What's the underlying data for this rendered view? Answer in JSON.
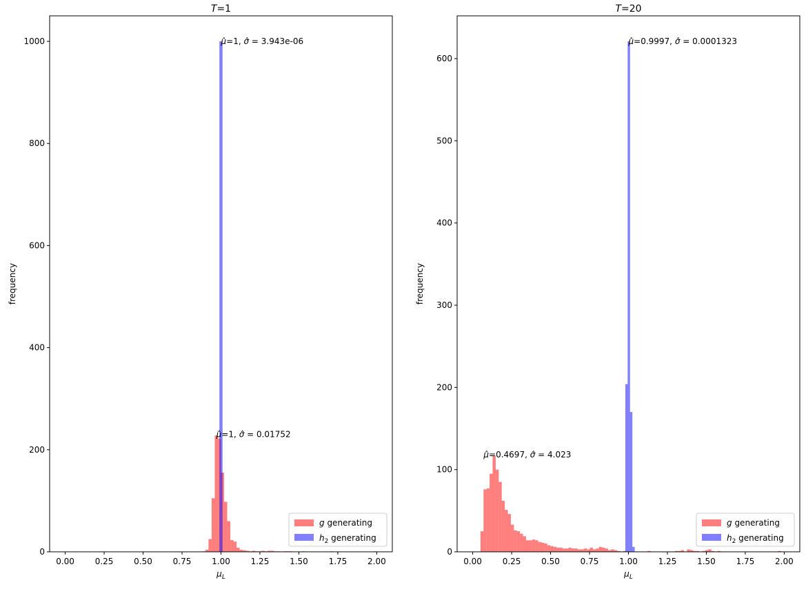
{
  "chart_data": [
    {
      "type": "bar",
      "title": "T=1",
      "title_italic_part": "T",
      "title_rest": "=1",
      "xlabel": "μL",
      "ylabel": "frequency",
      "xlim": [
        -0.1,
        2.1
      ],
      "ylim": [
        0,
        1050
      ],
      "x_ticks": [
        0.0,
        0.25,
        0.5,
        0.75,
        1.0,
        1.25,
        1.5,
        1.75,
        2.0
      ],
      "x_tick_labels": [
        "0.00",
        "0.25",
        "0.50",
        "0.75",
        "1.00",
        "1.25",
        "1.50",
        "1.75",
        "2.00"
      ],
      "y_ticks": [
        0,
        200,
        400,
        600,
        800,
        1000
      ],
      "y_tick_labels": [
        "0",
        "200",
        "400",
        "600",
        "800",
        "1000"
      ],
      "legend_position": "lower-right",
      "legend": [
        "g generating",
        "h2 generating"
      ],
      "series": [
        {
          "name": "g generating",
          "color": "#ff0000",
          "opacity": 0.5,
          "bin_start": 0.0,
          "bin_width": 0.02,
          "values": [
            0,
            0,
            0,
            0,
            0,
            0,
            0,
            0,
            0,
            0,
            0,
            0,
            0,
            0,
            0,
            0,
            0,
            0,
            0,
            0,
            0,
            0,
            0,
            0,
            0,
            0,
            0,
            0,
            0,
            0,
            0,
            0,
            0,
            0,
            0,
            0,
            0,
            0,
            0,
            0,
            0,
            0,
            0,
            0,
            1,
            4,
            25,
            105,
            228,
            222,
            155,
            98,
            60,
            23,
            20,
            8,
            4,
            3,
            2,
            1,
            2,
            1,
            1,
            2,
            1,
            2,
            2,
            1,
            1,
            0,
            1,
            1,
            1,
            0,
            0,
            0,
            1,
            0,
            0,
            0,
            0,
            0,
            0,
            0,
            0,
            1,
            0,
            0,
            0,
            0,
            0,
            0,
            0,
            0,
            0,
            0,
            0,
            0,
            0,
            1
          ]
        },
        {
          "name": "h2 generating",
          "color": "#0000ff",
          "opacity": 0.5,
          "bins": [
            [
              0.99,
              1.01,
              1000
            ]
          ]
        }
      ],
      "annotations": [
        {
          "text": "μ̂=1, σ̂ = 3.943e-06",
          "x": 1.0,
          "y": 1000
        },
        {
          "text": "μ̂=1, σ̂ = 0.01752",
          "x": 0.97,
          "y": 230
        }
      ]
    },
    {
      "type": "bar",
      "title": "T=20",
      "title_italic_part": "T",
      "title_rest": "=20",
      "xlabel": "μL",
      "ylabel": "frequency",
      "xlim": [
        -0.1,
        2.1
      ],
      "ylim": [
        0,
        652
      ],
      "x_ticks": [
        0.0,
        0.25,
        0.5,
        0.75,
        1.0,
        1.25,
        1.5,
        1.75,
        2.0
      ],
      "x_tick_labels": [
        "0.00",
        "0.25",
        "0.50",
        "0.75",
        "1.00",
        "1.25",
        "1.50",
        "1.75",
        "2.00"
      ],
      "y_ticks": [
        0,
        100,
        200,
        300,
        400,
        500,
        600
      ],
      "y_tick_labels": [
        "0",
        "100",
        "200",
        "300",
        "400",
        "500",
        "600"
      ],
      "legend_position": "lower-right",
      "legend": [
        "g generating",
        "h2 generating"
      ],
      "series": [
        {
          "name": "g generating",
          "color": "#ff0000",
          "opacity": 0.5,
          "bin_start": 0.05,
          "bin_width": 0.0195,
          "values": [
            25,
            76,
            77,
            95,
            117,
            100,
            85,
            62,
            51,
            46,
            33,
            26,
            25,
            22,
            19,
            14,
            14,
            15,
            14,
            12,
            11,
            10,
            8,
            7,
            6,
            5,
            5,
            4,
            4,
            5,
            4,
            4,
            3,
            3,
            4,
            3,
            5,
            3,
            4,
            6,
            5,
            4,
            2,
            3,
            2,
            1,
            0,
            1,
            0,
            0,
            0,
            0,
            0,
            0,
            0,
            1,
            0,
            0,
            0,
            0,
            0,
            0,
            0,
            0,
            1,
            1,
            2,
            0,
            3,
            2,
            1,
            1,
            0,
            1,
            2,
            3,
            1,
            0,
            1,
            0,
            0,
            0,
            0,
            0,
            0,
            0,
            0,
            0,
            0,
            0,
            0,
            0,
            0,
            0,
            0,
            0,
            0,
            0,
            1,
            0,
            0
          ]
        },
        {
          "name": "h2 generating",
          "color": "#0000ff",
          "opacity": 0.5,
          "bins": [
            [
              0.98,
              0.995,
              204
            ],
            [
              0.995,
              1.01,
              621
            ],
            [
              1.01,
              1.025,
              170
            ],
            [
              1.025,
              1.04,
              6
            ]
          ]
        }
      ],
      "annotations": [
        {
          "text": "μ̂=0.9997, σ̂ = 0.0001323",
          "x": 1.0,
          "y": 621
        },
        {
          "text": "μ̂=0.4697, σ̂ = 4.023",
          "x": 0.07,
          "y": 118
        }
      ]
    }
  ],
  "panels_text": [
    {
      "title_var": "T",
      "title_val": "=1",
      "ylabel": "frequency",
      "xlabel_var": "μ",
      "xlabel_sub": "L",
      "annot1_mu": "=1, ",
      "annot1_sigma_eq": " = 3.943e-06",
      "annot2_mu": "=1, ",
      "annot2_sigma_eq": " = 0.01752",
      "legend1_var": "g",
      "legend1_rest": " generating",
      "legend2_var": "h",
      "legend2_sub": "2",
      "legend2_rest": " generating"
    },
    {
      "title_var": "T",
      "title_val": "=20",
      "ylabel": "frequency",
      "xlabel_var": "μ",
      "xlabel_sub": "L",
      "annot1_mu": "=0.9997, ",
      "annot1_sigma_eq": " = 0.0001323",
      "annot2_mu": "=0.4697, ",
      "annot2_sigma_eq": " = 4.023",
      "legend1_var": "g",
      "legend1_rest": " generating",
      "legend2_var": "h",
      "legend2_sub": "2",
      "legend2_rest": " generating"
    }
  ]
}
